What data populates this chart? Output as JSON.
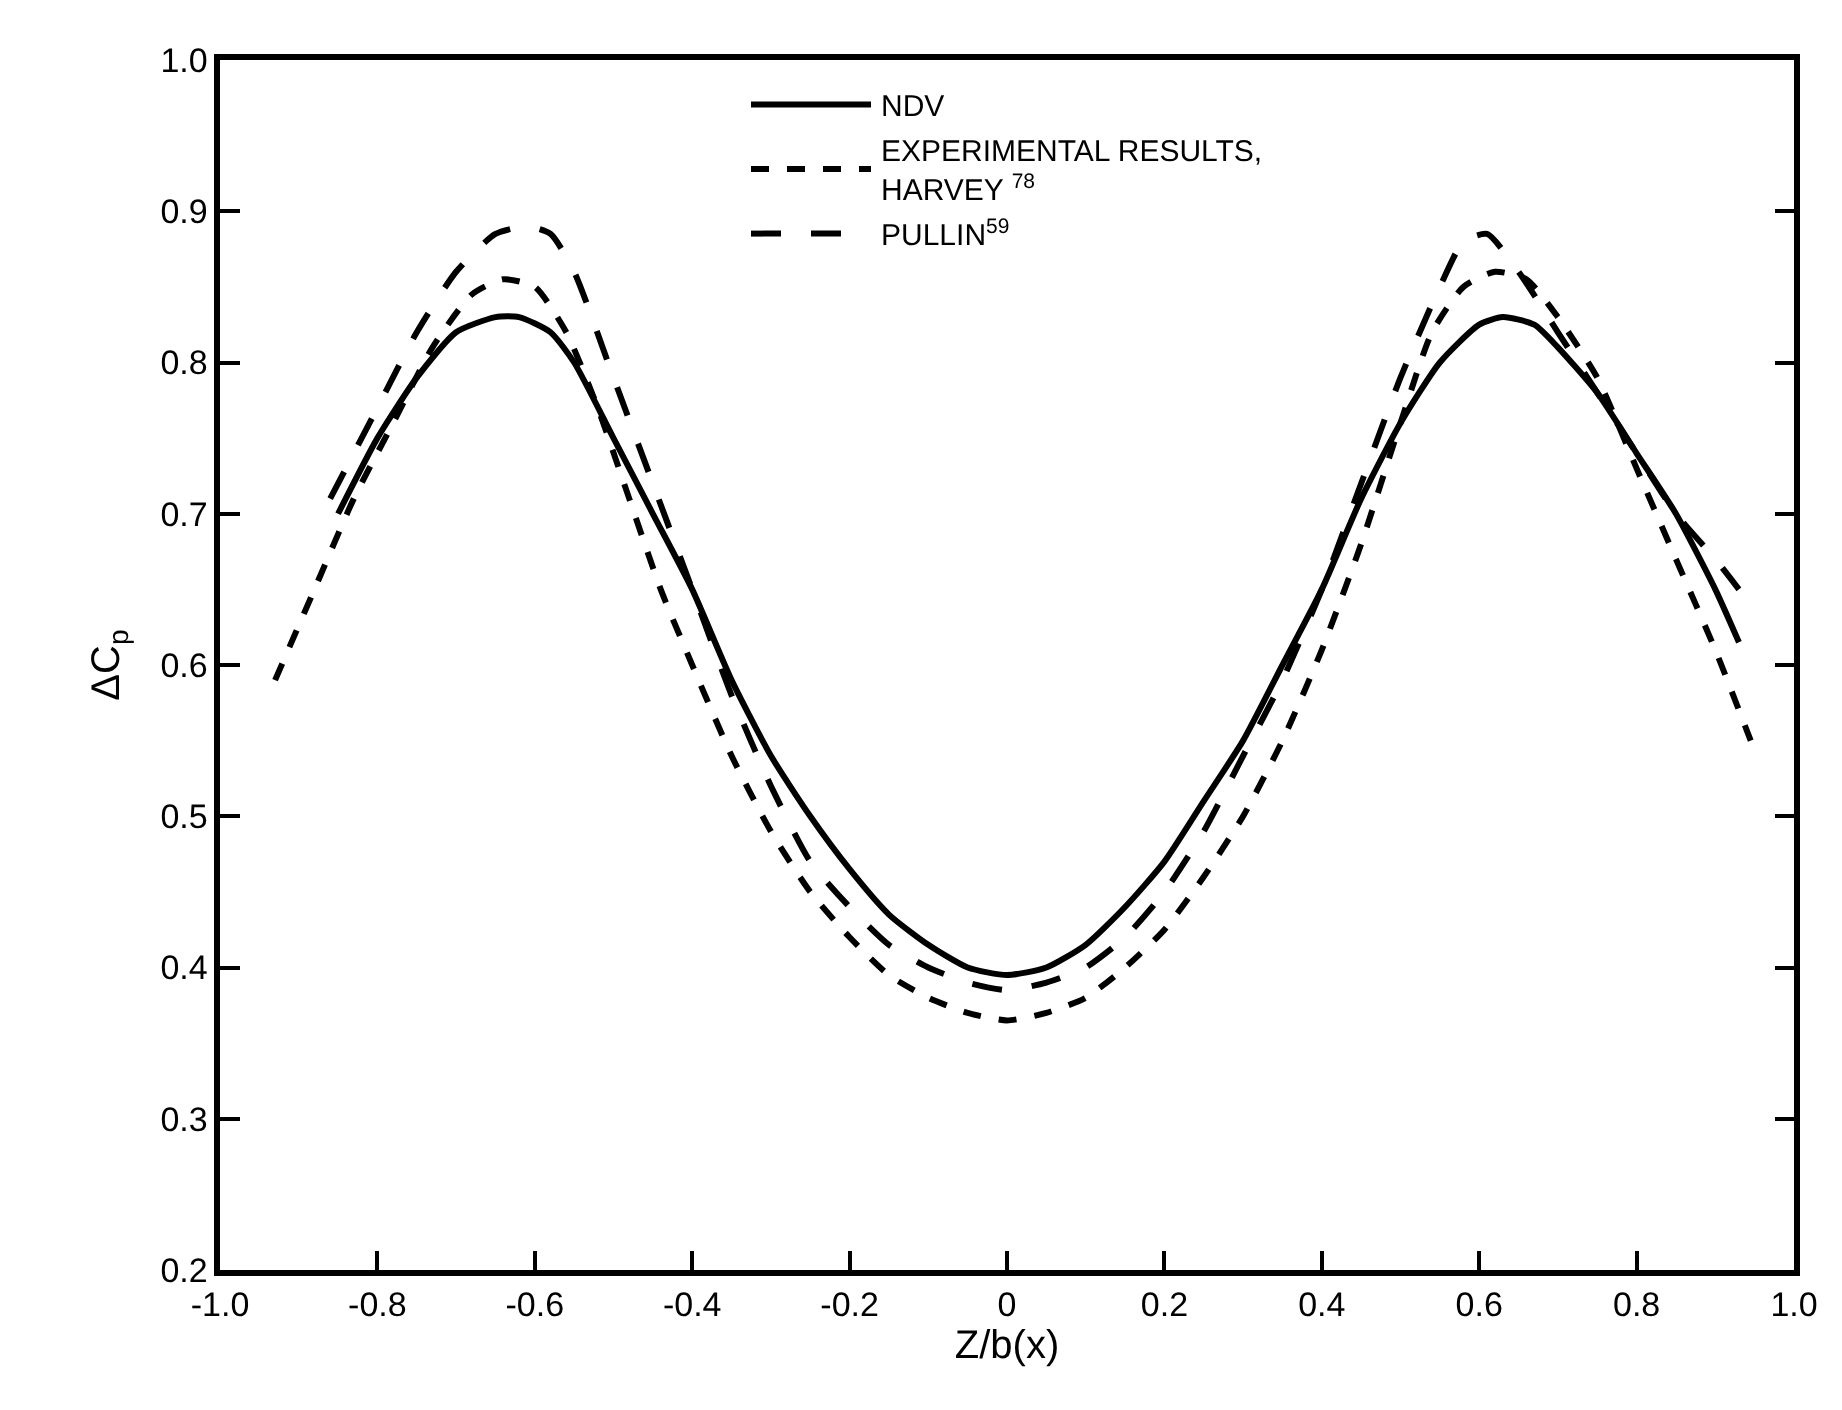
{
  "chart_data": {
    "type": "line",
    "xlabel": "Z/b(x)",
    "ylabel": "ΔC$_{p}$",
    "xlim": [
      -1.0,
      1.0
    ],
    "ylim": [
      0.2,
      1.0
    ],
    "xticks": [
      {
        "value": -1.0,
        "label": "-1.0"
      },
      -0.8,
      -0.6,
      -0.4,
      -0.2,
      0,
      0.2,
      0.4,
      0.6,
      0.8,
      {
        "value": 1.0,
        "label": "1.0"
      }
    ],
    "yticks": [
      0.2,
      0.3,
      0.4,
      0.5,
      0.6,
      0.7,
      0.8,
      0.9,
      {
        "value": 1.0,
        "label": "1.0"
      }
    ],
    "legend": "top",
    "marker": "none",
    "series": [
      {
        "name": "NDV",
        "color": "#000000",
        "line_style": "solid",
        "x": [
          -0.85,
          -0.8,
          -0.75,
          -0.7,
          -0.65,
          -0.62,
          -0.58,
          -0.55,
          -0.5,
          -0.45,
          -0.4,
          -0.35,
          -0.3,
          -0.25,
          -0.2,
          -0.15,
          -0.1,
          -0.05,
          0,
          0.05,
          0.1,
          0.15,
          0.2,
          0.25,
          0.3,
          0.35,
          0.4,
          0.45,
          0.5,
          0.55,
          0.6,
          0.63,
          0.67,
          0.7,
          0.75,
          0.8,
          0.85,
          0.9,
          0.93
        ],
        "values": [
          0.7,
          0.75,
          0.79,
          0.82,
          0.83,
          0.83,
          0.82,
          0.8,
          0.75,
          0.7,
          0.65,
          0.59,
          0.54,
          0.5,
          0.465,
          0.435,
          0.415,
          0.4,
          0.395,
          0.4,
          0.415,
          0.44,
          0.47,
          0.51,
          0.55,
          0.6,
          0.65,
          0.71,
          0.76,
          0.8,
          0.825,
          0.83,
          0.825,
          0.81,
          0.78,
          0.74,
          0.7,
          0.65,
          0.615
        ]
      },
      {
        "name": "EXPERIMENTAL RESULTS,\nHARVEY $^{78}$",
        "color": "#000000",
        "line_style": "dashed",
        "x": [
          -0.93,
          -0.88,
          -0.83,
          -0.78,
          -0.73,
          -0.68,
          -0.64,
          -0.6,
          -0.56,
          -0.52,
          -0.48,
          -0.44,
          -0.4,
          -0.35,
          -0.3,
          -0.25,
          -0.2,
          -0.15,
          -0.1,
          -0.05,
          0,
          0.05,
          0.1,
          0.15,
          0.2,
          0.25,
          0.3,
          0.35,
          0.4,
          0.45,
          0.5,
          0.54,
          0.58,
          0.62,
          0.66,
          0.7,
          0.75,
          0.8,
          0.85,
          0.9,
          0.945
        ],
        "values": [
          0.59,
          0.65,
          0.71,
          0.76,
          0.81,
          0.845,
          0.855,
          0.85,
          0.82,
          0.77,
          0.71,
          0.65,
          0.6,
          0.54,
          0.49,
          0.45,
          0.42,
          0.395,
          0.38,
          0.37,
          0.365,
          0.37,
          0.38,
          0.4,
          0.425,
          0.46,
          0.5,
          0.55,
          0.61,
          0.68,
          0.76,
          0.82,
          0.85,
          0.86,
          0.855,
          0.83,
          0.79,
          0.73,
          0.67,
          0.61,
          0.55
        ]
      },
      {
        "name": "PULLIN$^{59}$",
        "color": "#000000",
        "line_style": "longdash",
        "x": [
          -0.86,
          -0.8,
          -0.75,
          -0.7,
          -0.65,
          -0.61,
          -0.58,
          -0.55,
          -0.5,
          -0.45,
          -0.4,
          -0.35,
          -0.3,
          -0.25,
          -0.2,
          -0.15,
          -0.1,
          -0.05,
          0,
          0.05,
          0.1,
          0.15,
          0.2,
          0.25,
          0.3,
          0.35,
          0.4,
          0.45,
          0.5,
          0.55,
          0.58,
          0.61,
          0.65,
          0.7,
          0.75,
          0.8,
          0.85,
          0.9,
          0.93
        ],
        "values": [
          0.71,
          0.77,
          0.82,
          0.86,
          0.885,
          0.89,
          0.885,
          0.86,
          0.79,
          0.72,
          0.65,
          0.58,
          0.52,
          0.47,
          0.44,
          0.415,
          0.4,
          0.39,
          0.385,
          0.39,
          0.4,
          0.42,
          0.45,
          0.49,
          0.54,
          0.59,
          0.65,
          0.72,
          0.79,
          0.85,
          0.88,
          0.885,
          0.86,
          0.82,
          0.78,
          0.74,
          0.7,
          0.67,
          0.65
        ]
      }
    ]
  }
}
